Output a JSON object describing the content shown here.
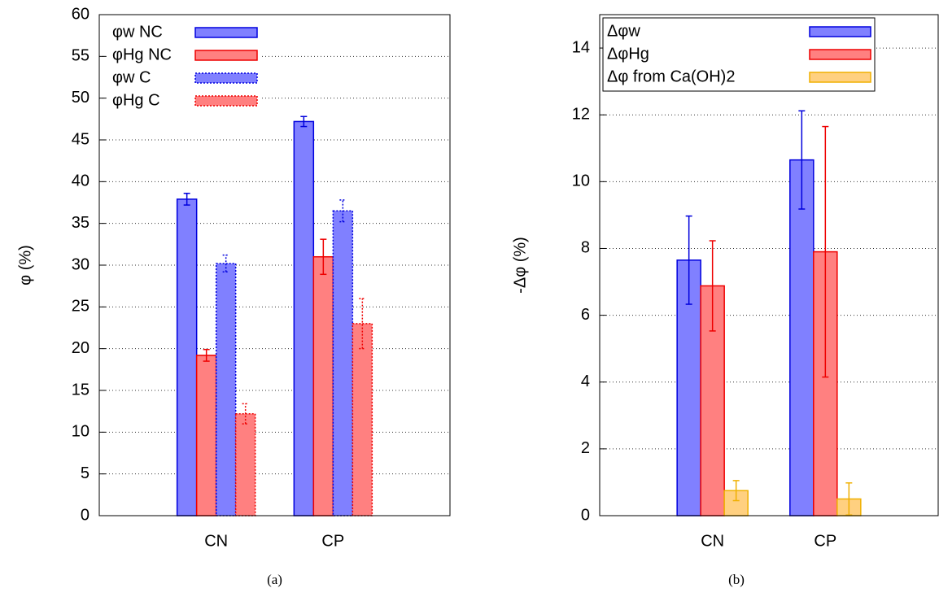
{
  "chart_data": [
    {
      "type": "bar",
      "y_label": "φ (%)",
      "caption": "(a)",
      "categories": [
        "CN",
        "CP"
      ],
      "series": [
        {
          "name": "φw NC",
          "color": "#8080ff",
          "edgecolor": "#0000dd",
          "dashed": false,
          "values": [
            37.9,
            47.2
          ],
          "errors": [
            0.7,
            0.6
          ]
        },
        {
          "name": "φHg NC",
          "color": "#ff8080",
          "edgecolor": "#ee0000",
          "dashed": false,
          "values": [
            19.2,
            31.0
          ],
          "errors": [
            0.7,
            2.1
          ]
        },
        {
          "name": "φw C",
          "color": "#8080ff",
          "edgecolor": "#0000dd",
          "dashed": true,
          "values": [
            30.2,
            36.5
          ],
          "errors": [
            1.0,
            1.3
          ]
        },
        {
          "name": "φHg C",
          "color": "#ff8080",
          "edgecolor": "#ee0000",
          "dashed": true,
          "values": [
            12.2,
            23.0
          ],
          "errors": [
            1.2,
            3.0
          ]
        }
      ],
      "ylim": [
        0,
        60
      ],
      "yticks": [
        0,
        5,
        10,
        15,
        20,
        25,
        30,
        35,
        40,
        45,
        50,
        55,
        60
      ],
      "grid": true,
      "legend": "upper left",
      "legend_box": false
    },
    {
      "type": "bar",
      "y_label": "-Δφ (%)",
      "caption": "(b)",
      "categories": [
        "CN",
        "CP"
      ],
      "series": [
        {
          "name": "Δφw",
          "color": "#8080ff",
          "edgecolor": "#0000dd",
          "dashed": false,
          "values": [
            7.65,
            10.65
          ],
          "errors": [
            1.32,
            1.47
          ]
        },
        {
          "name": "ΔφHg",
          "color": "#ff8080",
          "edgecolor": "#ee0000",
          "dashed": false,
          "values": [
            6.88,
            7.9
          ],
          "errors": [
            1.35,
            3.75
          ]
        },
        {
          "name": "Δφ from Ca(OH)2",
          "color": "#ffd080",
          "edgecolor": "#f0b000",
          "dashed": false,
          "values": [
            0.75,
            0.5
          ],
          "errors": [
            0.3,
            0.48
          ]
        }
      ],
      "ylim": [
        0,
        15
      ],
      "yticks": [
        0,
        2,
        4,
        6,
        8,
        10,
        12,
        14
      ],
      "grid": true,
      "legend": "upper left",
      "legend_box": true
    }
  ]
}
